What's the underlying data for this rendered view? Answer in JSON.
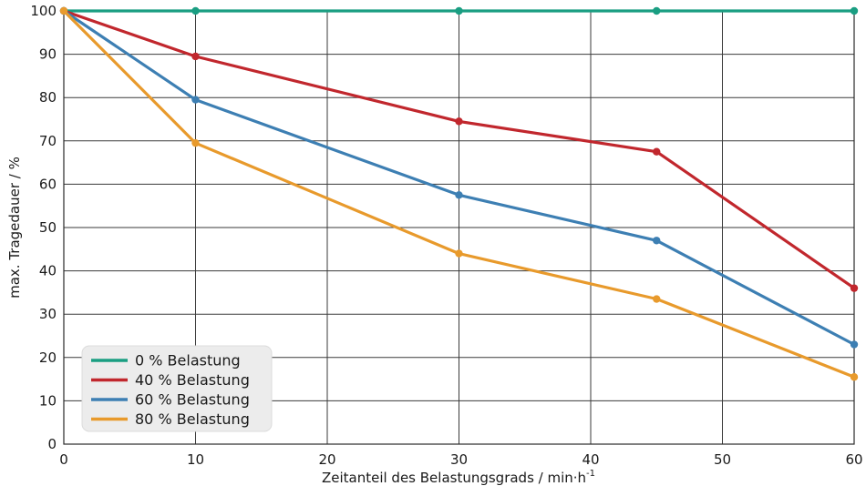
{
  "chart_data": {
    "type": "line",
    "xlabel": "Zeitanteil des Belastungsgrads / min·h",
    "xlabel_sup": "-1",
    "ylabel": "max. Tragedauer / %",
    "xlim": [
      0,
      60
    ],
    "ylim": [
      0,
      100
    ],
    "x_ticks": [
      0,
      10,
      20,
      30,
      40,
      50,
      60
    ],
    "y_ticks": [
      0,
      10,
      20,
      30,
      40,
      50,
      60,
      70,
      80,
      90,
      100
    ],
    "grid": true,
    "legend_position": "bottom-left",
    "series": [
      {
        "name": "0 % Belastung",
        "color": "#1a9e82",
        "x": [
          0,
          10,
          30,
          45,
          60
        ],
        "y": [
          100,
          100,
          100,
          100,
          100
        ]
      },
      {
        "name": "40 % Belastung",
        "color": "#c1272d",
        "x": [
          0,
          10,
          30,
          45,
          60
        ],
        "y": [
          100,
          89.5,
          74.5,
          67.5,
          36
        ]
      },
      {
        "name": "60 % Belastung",
        "color": "#3d7fb3",
        "x": [
          0,
          10,
          30,
          45,
          60
        ],
        "y": [
          100,
          79.5,
          57.5,
          47,
          23
        ]
      },
      {
        "name": "80 % Belastung",
        "color": "#e89a2c",
        "x": [
          0,
          10,
          30,
          45,
          60
        ],
        "y": [
          100,
          69.5,
          44,
          33.5,
          15.5
        ]
      }
    ]
  }
}
